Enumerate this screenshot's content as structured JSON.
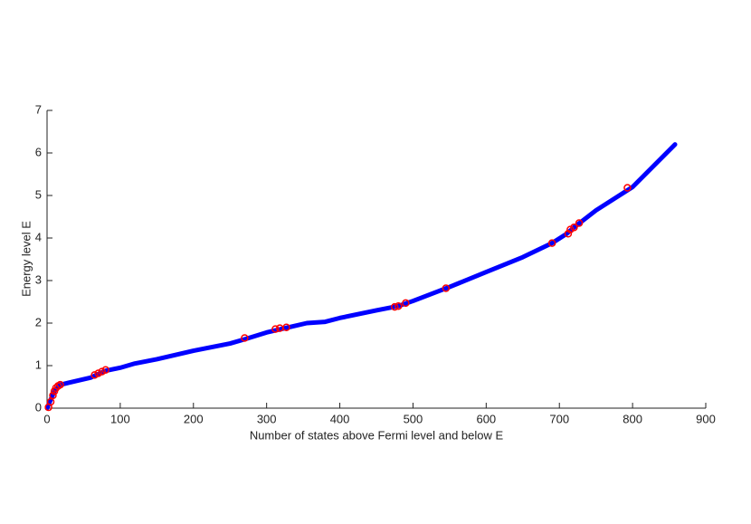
{
  "chart_data": {
    "type": "line",
    "xlabel": "Number of states above Fermi level and below E",
    "ylabel": "Energy level E",
    "xlim": [
      0,
      900
    ],
    "ylim": [
      0,
      7
    ],
    "xticks": [
      0,
      100,
      200,
      300,
      400,
      500,
      600,
      700,
      800,
      900
    ],
    "yticks": [
      0,
      1,
      2,
      3,
      4,
      5,
      6,
      7
    ],
    "series": [
      {
        "style": "line",
        "color": "#0000ff",
        "x": [
          0,
          5,
          10,
          18,
          30,
          60,
          80,
          100,
          120,
          150,
          200,
          250,
          270,
          300,
          330,
          355,
          380,
          400,
          450,
          480,
          500,
          550,
          600,
          650,
          690,
          710,
          720,
          750,
          800,
          858
        ],
        "values": [
          0,
          0.2,
          0.4,
          0.55,
          0.6,
          0.72,
          0.88,
          0.95,
          1.05,
          1.15,
          1.35,
          1.52,
          1.62,
          1.78,
          1.9,
          2.0,
          2.03,
          2.12,
          2.3,
          2.4,
          2.52,
          2.85,
          3.2,
          3.55,
          3.88,
          4.1,
          4.25,
          4.65,
          5.2,
          6.2
        ]
      },
      {
        "style": "circle",
        "color": "#ff0000",
        "x": [
          2,
          5,
          8,
          10,
          12,
          15,
          18,
          65,
          70,
          75,
          80,
          270,
          312,
          318,
          327,
          475,
          480,
          490,
          545,
          690,
          712,
          715,
          720,
          727,
          793
        ],
        "values": [
          0.02,
          0.15,
          0.3,
          0.4,
          0.47,
          0.52,
          0.55,
          0.78,
          0.82,
          0.86,
          0.9,
          1.65,
          1.86,
          1.88,
          1.9,
          2.38,
          2.4,
          2.47,
          2.82,
          3.88,
          4.1,
          4.2,
          4.25,
          4.35,
          5.18
        ]
      }
    ]
  }
}
